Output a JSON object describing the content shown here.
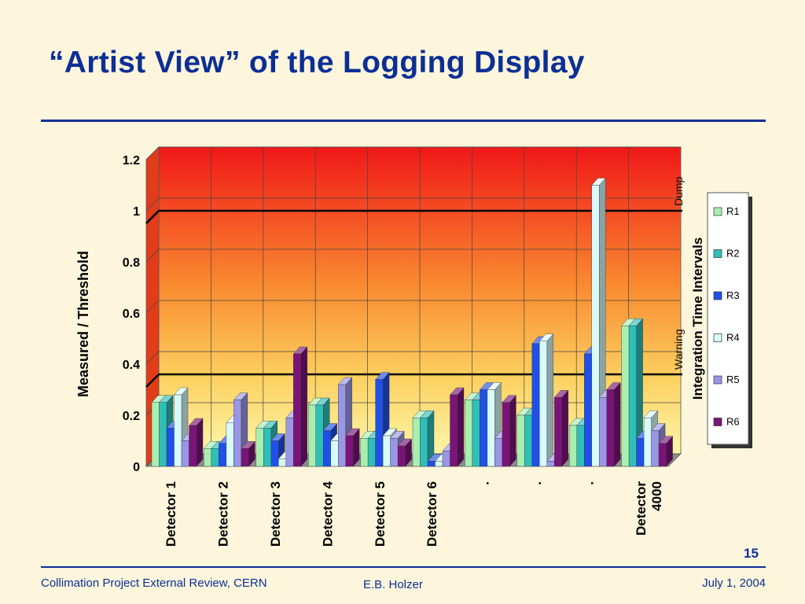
{
  "slide": {
    "title": "“Artist View” of the Logging  Display",
    "page_number": "15",
    "footer_left": "Collimation Project External Review, CERN",
    "footer_center": "E.B. Holzer",
    "footer_right": "July 1, 2004"
  },
  "colors": {
    "title": "#0b2f96",
    "background": "#fdf6dc",
    "wall_top": "#f01818",
    "wall_bottom": "#fdf6a8"
  },
  "chart_data": {
    "type": "bar",
    "ylabel": "Measured / Threshold",
    "ylim": [
      0,
      1.2
    ],
    "yticks": [
      "0",
      "0.2",
      "0.4",
      "0.6",
      "0.8",
      "1",
      "1.2"
    ],
    "grid": true,
    "categories": [
      "Detector 1",
      "Detector 2",
      "Detector 3",
      "Detector 4",
      "Detector 5",
      "Detector 6",
      ".",
      ".",
      ".",
      "Detector 4000"
    ],
    "thresholds": [
      {
        "label": "Dump",
        "value": 1.0
      },
      {
        "label": "Warning",
        "value": 0.36
      }
    ],
    "legend_title": "Integration Time Intervals",
    "legend_position": "right",
    "series": [
      {
        "name": "R1",
        "color": "#a8eeb0",
        "values": [
          0.25,
          0.07,
          0.15,
          0.24,
          0.11,
          0.19,
          0.26,
          0.2,
          0.16,
          0.55
        ]
      },
      {
        "name": "R2",
        "color": "#2ec0b8",
        "values": [
          0.25,
          0.07,
          0.15,
          0.24,
          0.11,
          0.19,
          0.26,
          0.2,
          0.16,
          0.55
        ]
      },
      {
        "name": "R3",
        "color": "#2050e8",
        "values": [
          0.15,
          0.09,
          0.1,
          0.14,
          0.34,
          0.02,
          0.3,
          0.48,
          0.44,
          0.11
        ]
      },
      {
        "name": "R4",
        "color": "#d8fafa",
        "values": [
          0.28,
          0.17,
          0.03,
          0.1,
          0.12,
          0.02,
          0.3,
          0.49,
          1.1,
          0.19
        ]
      },
      {
        "name": "R5",
        "color": "#9a96e6",
        "values": [
          0.1,
          0.26,
          0.19,
          0.32,
          0.11,
          0.06,
          0.11,
          0.02,
          0.27,
          0.14
        ]
      },
      {
        "name": "R6",
        "color": "#7a1478",
        "values": [
          0.16,
          0.07,
          0.44,
          0.12,
          0.08,
          0.28,
          0.25,
          0.27,
          0.3,
          0.09
        ]
      }
    ]
  }
}
